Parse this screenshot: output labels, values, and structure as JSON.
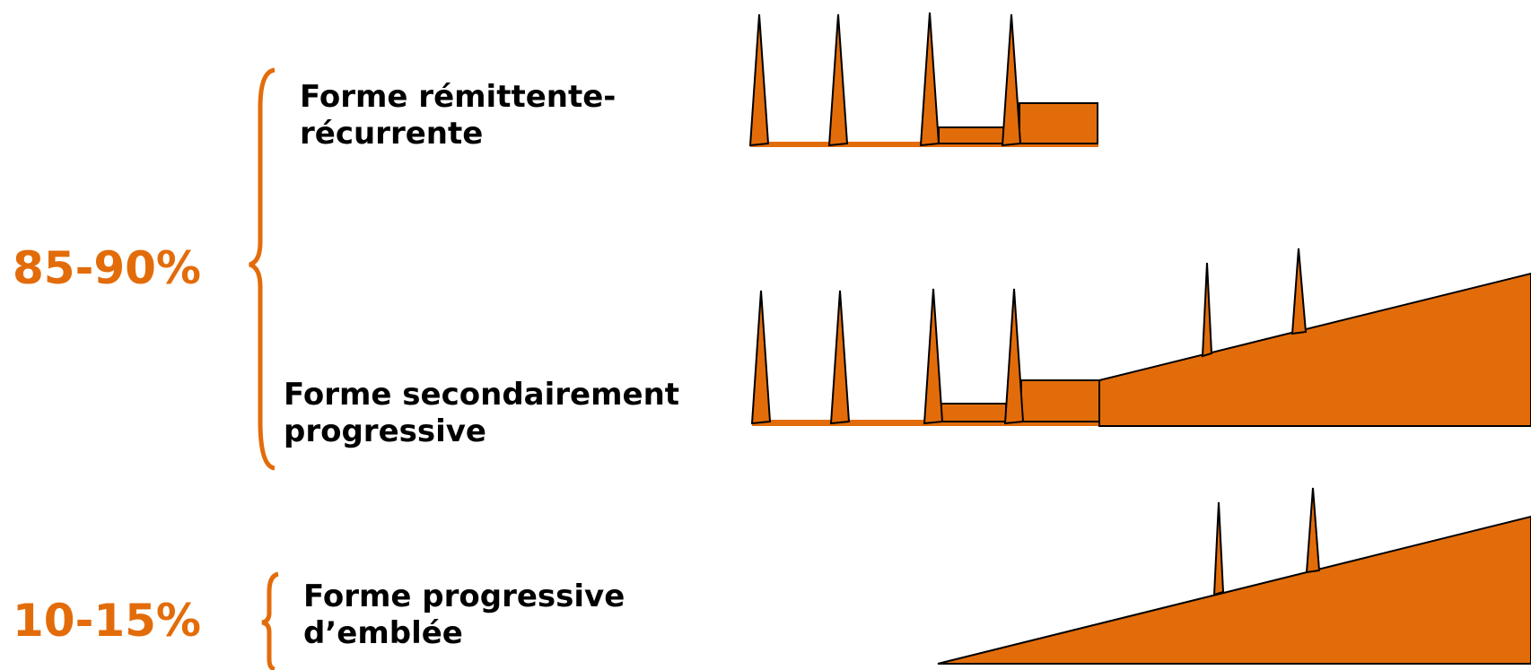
{
  "colors": {
    "accent": "#e36c0a",
    "outline": "#000000",
    "text": "#000000"
  },
  "groups": [
    {
      "percentage": "85-90%"
    },
    {
      "percentage": "10-15%"
    }
  ],
  "forms": [
    {
      "line1": "Forme rémittente-",
      "line2": "récurrente"
    },
    {
      "line1": "Forme secondairement",
      "line2": "progressive"
    },
    {
      "line1": "Forme progressive",
      "line2": "d’emblée"
    }
  ]
}
